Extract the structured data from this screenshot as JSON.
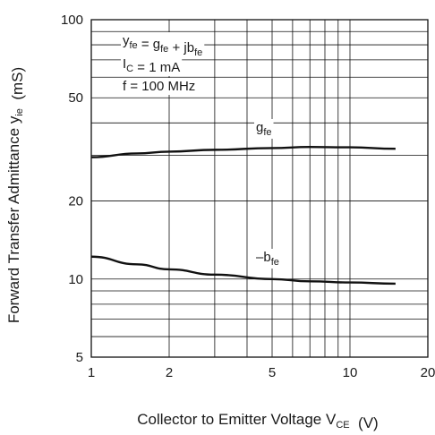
{
  "chart_data": {
    "type": "line",
    "title": "",
    "xlabel": {
      "main": "Collector to Emitter Voltage  V",
      "sub": "CE",
      "unit": "(V)"
    },
    "ylabel": {
      "main": "Forward Transfer Admittance  y",
      "sub": "ie",
      "unit": "(mS)"
    },
    "x_scale": "log",
    "y_scale": "log",
    "xlim": [
      1,
      20
    ],
    "ylim": [
      5,
      100
    ],
    "x_ticks": [
      {
        "value": 1,
        "label": "1"
      },
      {
        "value": 2,
        "label": "2"
      },
      {
        "value": 5,
        "label": "5"
      },
      {
        "value": 10,
        "label": "10"
      },
      {
        "value": 20,
        "label": "20"
      }
    ],
    "y_ticks": [
      {
        "value": 5,
        "label": "5"
      },
      {
        "value": 10,
        "label": "10"
      },
      {
        "value": 20,
        "label": "20"
      },
      {
        "value": 50,
        "label": "50"
      },
      {
        "value": 100,
        "label": "100"
      }
    ],
    "grid": true,
    "annotations": [
      {
        "parts": [
          [
            "y",
            ""
          ],
          [
            "fe",
            "sub"
          ],
          [
            " = g",
            ""
          ],
          [
            "fe",
            "sub"
          ],
          [
            " + jb",
            ""
          ],
          [
            "fe",
            "sub"
          ]
        ]
      },
      {
        "parts": [
          [
            "I",
            ""
          ],
          [
            "C",
            "sub"
          ],
          [
            " = 1 mA",
            ""
          ]
        ]
      },
      {
        "parts": [
          [
            "f = 100 MHz",
            ""
          ]
        ]
      }
    ],
    "series": [
      {
        "name": "g",
        "name_sub": "fe",
        "x": [
          1,
          1.5,
          2,
          3,
          5,
          7,
          10,
          15
        ],
        "y": [
          29.5,
          30.5,
          31,
          31.5,
          32,
          32.3,
          32.2,
          31.8
        ]
      },
      {
        "name": "–b",
        "name_sub": "fe",
        "x": [
          1,
          1.5,
          2,
          3,
          5,
          7,
          10,
          15
        ],
        "y": [
          12.2,
          11.4,
          10.9,
          10.4,
          10.0,
          9.8,
          9.7,
          9.6
        ]
      }
    ],
    "colors": {
      "line": "#111111",
      "grid": "#111111",
      "background": "#ffffff"
    }
  }
}
